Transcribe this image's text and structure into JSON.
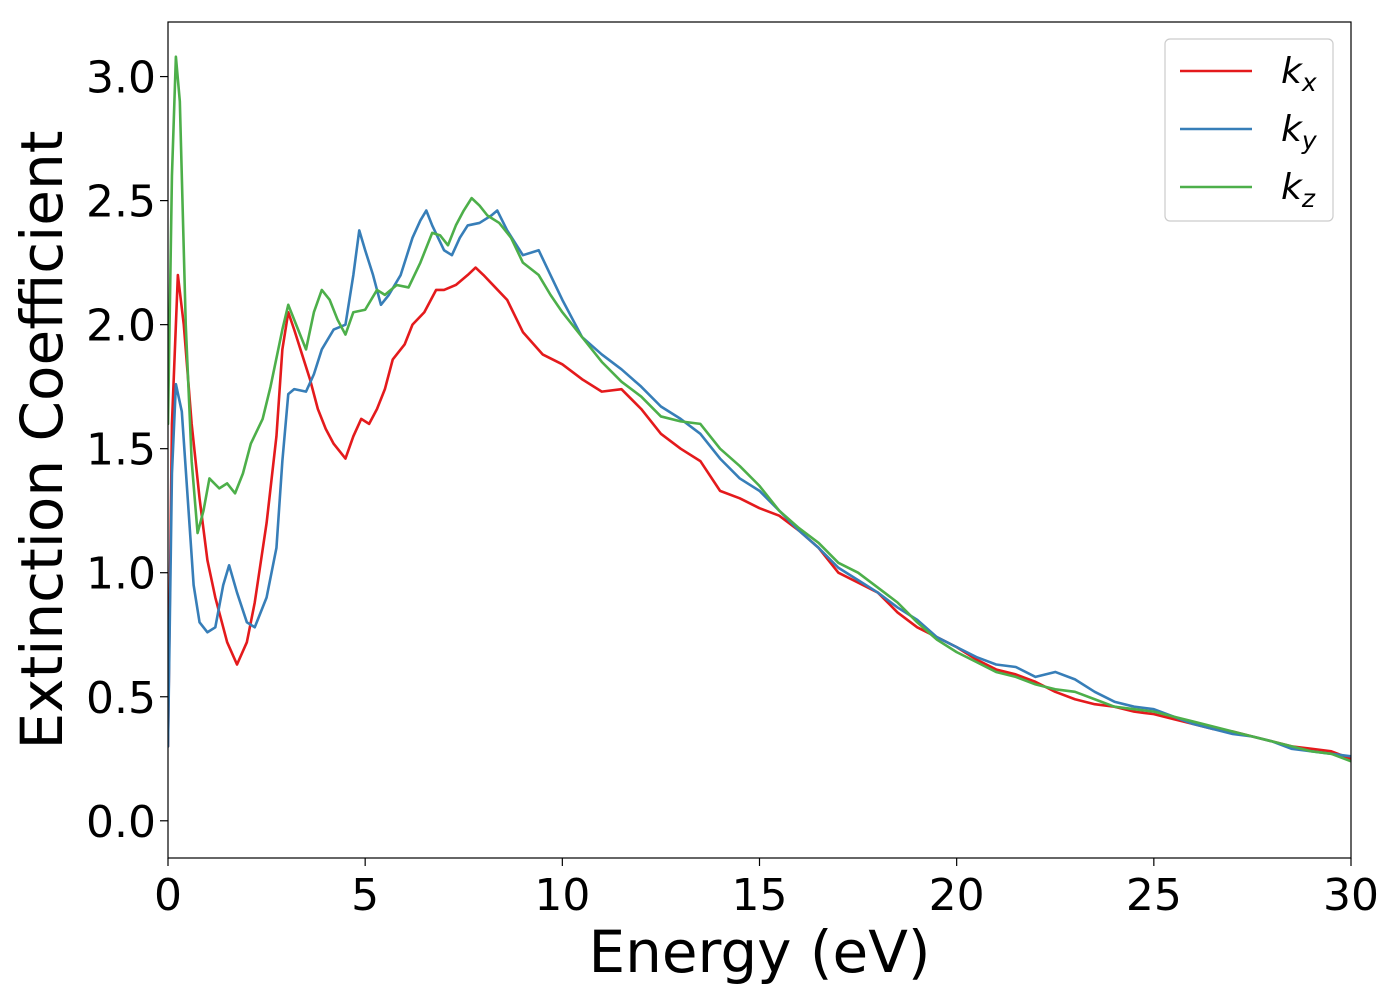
{
  "chart_data": {
    "type": "line",
    "xlabel": "Energy (eV)",
    "ylabel": "Extinction Coefficient",
    "xlim": [
      0,
      30
    ],
    "ylim": [
      -0.15,
      3.22
    ],
    "xticks": [
      0,
      5,
      10,
      15,
      20,
      25,
      30
    ],
    "yticks": [
      0.0,
      0.5,
      1.0,
      1.5,
      2.0,
      2.5,
      3.0
    ],
    "xtick_labels": [
      "0",
      "5",
      "10",
      "15",
      "20",
      "25",
      "30"
    ],
    "ytick_labels": [
      "0.0",
      "0.5",
      "1.0",
      "1.5",
      "2.0",
      "2.5",
      "3.0"
    ],
    "grid": false,
    "legend_position": "top-right",
    "series": [
      {
        "name": "k_x",
        "label_main": "k",
        "label_sub": "x",
        "color": "#e41a1c",
        "points": [
          [
            0,
            0.3
          ],
          [
            0.1,
            1.6
          ],
          [
            0.25,
            2.2
          ],
          [
            0.4,
            2.0
          ],
          [
            0.6,
            1.6
          ],
          [
            0.8,
            1.3
          ],
          [
            1.0,
            1.05
          ],
          [
            1.2,
            0.9
          ],
          [
            1.5,
            0.72
          ],
          [
            1.75,
            0.63
          ],
          [
            2.0,
            0.72
          ],
          [
            2.2,
            0.88
          ],
          [
            2.5,
            1.2
          ],
          [
            2.75,
            1.55
          ],
          [
            2.9,
            1.9
          ],
          [
            3.05,
            2.05
          ],
          [
            3.2,
            1.98
          ],
          [
            3.4,
            1.88
          ],
          [
            3.6,
            1.78
          ],
          [
            3.8,
            1.66
          ],
          [
            4.0,
            1.58
          ],
          [
            4.2,
            1.52
          ],
          [
            4.5,
            1.46
          ],
          [
            4.7,
            1.55
          ],
          [
            4.9,
            1.62
          ],
          [
            5.1,
            1.6
          ],
          [
            5.3,
            1.66
          ],
          [
            5.5,
            1.74
          ],
          [
            5.7,
            1.86
          ],
          [
            6.0,
            1.92
          ],
          [
            6.2,
            2.0
          ],
          [
            6.5,
            2.05
          ],
          [
            6.8,
            2.14
          ],
          [
            7.0,
            2.14
          ],
          [
            7.3,
            2.16
          ],
          [
            7.6,
            2.2
          ],
          [
            7.8,
            2.23
          ],
          [
            8.0,
            2.2
          ],
          [
            8.3,
            2.15
          ],
          [
            8.6,
            2.1
          ],
          [
            9.0,
            1.97
          ],
          [
            9.5,
            1.88
          ],
          [
            10.0,
            1.84
          ],
          [
            10.5,
            1.78
          ],
          [
            11.0,
            1.73
          ],
          [
            11.5,
            1.74
          ],
          [
            12.0,
            1.66
          ],
          [
            12.5,
            1.56
          ],
          [
            13.0,
            1.5
          ],
          [
            13.5,
            1.45
          ],
          [
            14.0,
            1.33
          ],
          [
            14.5,
            1.3
          ],
          [
            15.0,
            1.26
          ],
          [
            15.5,
            1.23
          ],
          [
            16.0,
            1.17
          ],
          [
            16.5,
            1.1
          ],
          [
            17.0,
            1.0
          ],
          [
            17.5,
            0.96
          ],
          [
            18.0,
            0.92
          ],
          [
            18.5,
            0.84
          ],
          [
            19.0,
            0.78
          ],
          [
            19.5,
            0.74
          ],
          [
            20.0,
            0.7
          ],
          [
            20.5,
            0.65
          ],
          [
            21.0,
            0.61
          ],
          [
            21.5,
            0.59
          ],
          [
            22.0,
            0.56
          ],
          [
            22.5,
            0.52
          ],
          [
            23.0,
            0.49
          ],
          [
            23.5,
            0.47
          ],
          [
            24.0,
            0.46
          ],
          [
            24.5,
            0.44
          ],
          [
            25.0,
            0.43
          ],
          [
            25.5,
            0.41
          ],
          [
            26.0,
            0.39
          ],
          [
            26.5,
            0.37
          ],
          [
            27.0,
            0.36
          ],
          [
            27.5,
            0.34
          ],
          [
            28.0,
            0.32
          ],
          [
            28.5,
            0.3
          ],
          [
            29.0,
            0.29
          ],
          [
            29.5,
            0.28
          ],
          [
            30.0,
            0.25
          ]
        ]
      },
      {
        "name": "k_y",
        "label_main": "k",
        "label_sub": "y",
        "color": "#377eb8",
        "points": [
          [
            0,
            0.3
          ],
          [
            0.1,
            1.4
          ],
          [
            0.2,
            1.76
          ],
          [
            0.35,
            1.65
          ],
          [
            0.5,
            1.3
          ],
          [
            0.65,
            0.95
          ],
          [
            0.8,
            0.8
          ],
          [
            1.0,
            0.76
          ],
          [
            1.2,
            0.78
          ],
          [
            1.4,
            0.95
          ],
          [
            1.55,
            1.03
          ],
          [
            1.75,
            0.92
          ],
          [
            2.0,
            0.8
          ],
          [
            2.2,
            0.78
          ],
          [
            2.5,
            0.9
          ],
          [
            2.75,
            1.1
          ],
          [
            2.9,
            1.45
          ],
          [
            3.05,
            1.72
          ],
          [
            3.2,
            1.74
          ],
          [
            3.5,
            1.73
          ],
          [
            3.7,
            1.8
          ],
          [
            3.9,
            1.9
          ],
          [
            4.2,
            1.98
          ],
          [
            4.5,
            2.0
          ],
          [
            4.7,
            2.2
          ],
          [
            4.85,
            2.38
          ],
          [
            5.0,
            2.3
          ],
          [
            5.2,
            2.2
          ],
          [
            5.4,
            2.08
          ],
          [
            5.6,
            2.12
          ],
          [
            5.9,
            2.2
          ],
          [
            6.2,
            2.35
          ],
          [
            6.4,
            2.42
          ],
          [
            6.55,
            2.46
          ],
          [
            6.7,
            2.4
          ],
          [
            7.0,
            2.3
          ],
          [
            7.2,
            2.28
          ],
          [
            7.4,
            2.35
          ],
          [
            7.6,
            2.4
          ],
          [
            7.9,
            2.41
          ],
          [
            8.2,
            2.44
          ],
          [
            8.35,
            2.46
          ],
          [
            8.6,
            2.38
          ],
          [
            9.0,
            2.28
          ],
          [
            9.4,
            2.3
          ],
          [
            9.7,
            2.2
          ],
          [
            10.0,
            2.1
          ],
          [
            10.5,
            1.95
          ],
          [
            11.0,
            1.88
          ],
          [
            11.5,
            1.82
          ],
          [
            12.0,
            1.75
          ],
          [
            12.5,
            1.67
          ],
          [
            13.0,
            1.62
          ],
          [
            13.5,
            1.56
          ],
          [
            14.0,
            1.46
          ],
          [
            14.5,
            1.38
          ],
          [
            15.0,
            1.33
          ],
          [
            15.5,
            1.25
          ],
          [
            16.0,
            1.17
          ],
          [
            16.5,
            1.1
          ],
          [
            17.0,
            1.02
          ],
          [
            17.5,
            0.97
          ],
          [
            18.0,
            0.92
          ],
          [
            18.5,
            0.86
          ],
          [
            19.0,
            0.81
          ],
          [
            19.5,
            0.74
          ],
          [
            20.0,
            0.7
          ],
          [
            20.5,
            0.66
          ],
          [
            21.0,
            0.63
          ],
          [
            21.5,
            0.62
          ],
          [
            22.0,
            0.58
          ],
          [
            22.5,
            0.6
          ],
          [
            23.0,
            0.57
          ],
          [
            23.5,
            0.52
          ],
          [
            24.0,
            0.48
          ],
          [
            24.5,
            0.46
          ],
          [
            25.0,
            0.45
          ],
          [
            25.5,
            0.42
          ],
          [
            26.0,
            0.39
          ],
          [
            26.5,
            0.37
          ],
          [
            27.0,
            0.35
          ],
          [
            27.5,
            0.34
          ],
          [
            28.0,
            0.32
          ],
          [
            28.5,
            0.29
          ],
          [
            29.0,
            0.28
          ],
          [
            29.5,
            0.27
          ],
          [
            30.0,
            0.26
          ]
        ]
      },
      {
        "name": "k_z",
        "label_main": "k",
        "label_sub": "z",
        "color": "#4daf4a",
        "points": [
          [
            0,
            1.6
          ],
          [
            0.1,
            2.6
          ],
          [
            0.2,
            3.08
          ],
          [
            0.3,
            2.9
          ],
          [
            0.45,
            2.0
          ],
          [
            0.6,
            1.45
          ],
          [
            0.75,
            1.16
          ],
          [
            0.9,
            1.25
          ],
          [
            1.05,
            1.38
          ],
          [
            1.3,
            1.34
          ],
          [
            1.5,
            1.36
          ],
          [
            1.7,
            1.32
          ],
          [
            1.9,
            1.4
          ],
          [
            2.1,
            1.52
          ],
          [
            2.4,
            1.62
          ],
          [
            2.6,
            1.75
          ],
          [
            2.9,
            1.98
          ],
          [
            3.05,
            2.08
          ],
          [
            3.3,
            1.98
          ],
          [
            3.5,
            1.9
          ],
          [
            3.7,
            2.05
          ],
          [
            3.9,
            2.14
          ],
          [
            4.1,
            2.1
          ],
          [
            4.3,
            2.02
          ],
          [
            4.5,
            1.96
          ],
          [
            4.7,
            2.05
          ],
          [
            5.0,
            2.06
          ],
          [
            5.3,
            2.14
          ],
          [
            5.5,
            2.12
          ],
          [
            5.8,
            2.16
          ],
          [
            6.1,
            2.15
          ],
          [
            6.4,
            2.25
          ],
          [
            6.7,
            2.37
          ],
          [
            6.9,
            2.36
          ],
          [
            7.1,
            2.32
          ],
          [
            7.3,
            2.4
          ],
          [
            7.5,
            2.46
          ],
          [
            7.7,
            2.51
          ],
          [
            7.9,
            2.48
          ],
          [
            8.1,
            2.44
          ],
          [
            8.4,
            2.41
          ],
          [
            8.7,
            2.35
          ],
          [
            9.0,
            2.25
          ],
          [
            9.4,
            2.2
          ],
          [
            9.7,
            2.12
          ],
          [
            10.0,
            2.05
          ],
          [
            10.5,
            1.95
          ],
          [
            11.0,
            1.85
          ],
          [
            11.5,
            1.77
          ],
          [
            12.0,
            1.71
          ],
          [
            12.5,
            1.63
          ],
          [
            13.0,
            1.61
          ],
          [
            13.5,
            1.6
          ],
          [
            14.0,
            1.5
          ],
          [
            14.5,
            1.43
          ],
          [
            15.0,
            1.35
          ],
          [
            15.5,
            1.25
          ],
          [
            16.0,
            1.18
          ],
          [
            16.5,
            1.12
          ],
          [
            17.0,
            1.04
          ],
          [
            17.5,
            1.0
          ],
          [
            18.0,
            0.94
          ],
          [
            18.5,
            0.88
          ],
          [
            19.0,
            0.8
          ],
          [
            19.5,
            0.73
          ],
          [
            20.0,
            0.68
          ],
          [
            20.5,
            0.64
          ],
          [
            21.0,
            0.6
          ],
          [
            21.5,
            0.58
          ],
          [
            22.0,
            0.55
          ],
          [
            22.5,
            0.53
          ],
          [
            23.0,
            0.52
          ],
          [
            23.5,
            0.49
          ],
          [
            24.0,
            0.46
          ],
          [
            24.5,
            0.45
          ],
          [
            25.0,
            0.44
          ],
          [
            25.5,
            0.42
          ],
          [
            26.0,
            0.4
          ],
          [
            26.5,
            0.38
          ],
          [
            27.0,
            0.36
          ],
          [
            27.5,
            0.34
          ],
          [
            28.0,
            0.32
          ],
          [
            28.5,
            0.3
          ],
          [
            29.0,
            0.28
          ],
          [
            29.5,
            0.27
          ],
          [
            30.0,
            0.24
          ]
        ]
      }
    ]
  }
}
